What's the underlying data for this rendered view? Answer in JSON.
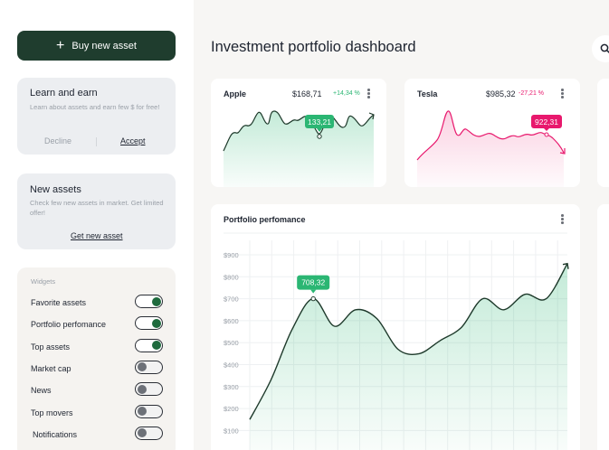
{
  "sidebar": {
    "buy_button": "Buy new asset",
    "learn": {
      "title": "Learn and earn",
      "description": "Learn about assets and earn few $ for free!",
      "decline": "Decline",
      "accept": "Accept"
    },
    "new_assets": {
      "title": "New assets",
      "description": "Check few new assets in market. Get limited offer!",
      "link": "Get new asset"
    },
    "widgets": {
      "title": "Widgets",
      "items": [
        {
          "label": "Favorite assets",
          "on": true
        },
        {
          "label": "Portfolio perfomance",
          "on": true
        },
        {
          "label": "Top assets",
          "on": true
        },
        {
          "label": "Market cap",
          "on": false
        },
        {
          "label": "News",
          "on": false
        },
        {
          "label": "Top movers",
          "on": false
        },
        {
          "label": "Notifications",
          "on": false
        }
      ]
    }
  },
  "header": {
    "title": "Investment portfolio dashboard"
  },
  "stocks": [
    {
      "name": "Apple",
      "price": "$168,71",
      "change": "+14,34 %",
      "tooltip": "133,21",
      "color": "#2bb673"
    },
    {
      "name": "Tesla",
      "price": "$985,32",
      "change": "-27,21 %",
      "tooltip": "922,31",
      "color": "#e8186d"
    }
  ],
  "performance": {
    "title": "Portfolio perfomance",
    "tooltip": "708,32"
  },
  "chart_data": {
    "type": "area",
    "title": "Portfolio perfomance",
    "yticks": [
      "$900",
      "$800",
      "$700",
      "$600",
      "$500",
      "$400",
      "$300",
      "$200",
      "$100"
    ],
    "ylim": [
      100,
      900
    ],
    "x": [
      0,
      1,
      2,
      3,
      4,
      5,
      6,
      7,
      8,
      9,
      10,
      11,
      12,
      13,
      14,
      15
    ],
    "values": [
      150,
      330,
      560,
      700,
      575,
      650,
      610,
      470,
      450,
      510,
      570,
      700,
      650,
      720,
      700,
      860
    ],
    "grid": true,
    "color": "#1f3d2e"
  }
}
